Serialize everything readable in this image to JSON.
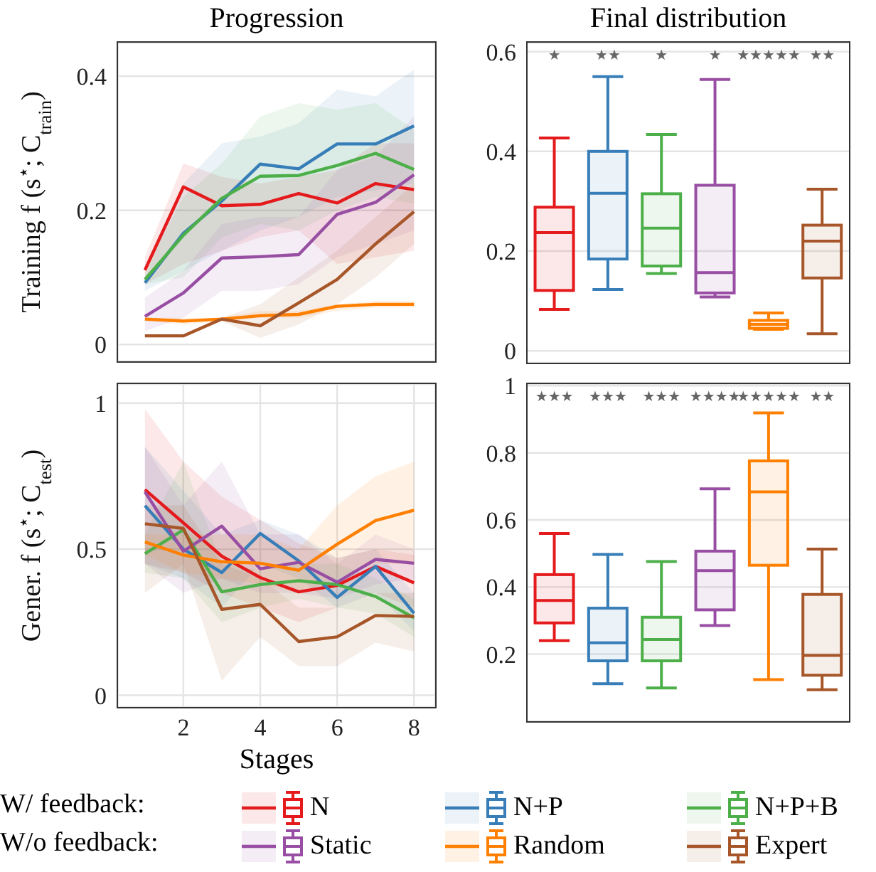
{
  "chart_data": [
    {
      "type": "line",
      "title": "Progression",
      "ylabel": "Training f (s$^{⋆}$; C$_{train}$)",
      "x": [
        1,
        2,
        3,
        4,
        5,
        6,
        7,
        8
      ],
      "xlim": [
        0.3,
        8.55
      ],
      "xticks": [
        2,
        4,
        6,
        8
      ],
      "ylim": [
        -0.025,
        0.45
      ],
      "yticks": [
        0,
        0.2,
        0.4
      ],
      "grid": true,
      "tick_labels": "y",
      "legend": "bottom",
      "annotations": [
        "W/ feedback:",
        "W/o feedback:"
      ],
      "series": [
        {
          "name": "N",
          "color": "#e41a1c",
          "values": [
            0.111,
            0.235,
            0.207,
            0.209,
            0.225,
            0.211,
            0.24,
            0.231
          ],
          "lower": [
            0.09,
            0.12,
            0.14,
            0.16,
            0.17,
            0.12,
            0.13,
            0.14
          ],
          "upper": [
            0.13,
            0.27,
            0.25,
            0.24,
            0.25,
            0.26,
            0.3,
            0.3
          ]
        },
        {
          "name": "N+P",
          "color": "#377eb8",
          "values": [
            0.092,
            0.166,
            0.214,
            0.269,
            0.262,
            0.299,
            0.299,
            0.326
          ],
          "lower": [
            0.08,
            0.11,
            0.14,
            0.17,
            0.19,
            0.22,
            0.23,
            0.24
          ],
          "upper": [
            0.1,
            0.24,
            0.3,
            0.31,
            0.33,
            0.38,
            0.37,
            0.41
          ]
        },
        {
          "name": "N+P+B",
          "color": "#4daf4a",
          "values": [
            0.097,
            0.163,
            0.218,
            0.251,
            0.252,
            0.267,
            0.285,
            0.261
          ],
          "lower": [
            0.09,
            0.1,
            0.16,
            0.18,
            0.17,
            0.2,
            0.22,
            0.21
          ],
          "upper": [
            0.11,
            0.22,
            0.27,
            0.34,
            0.36,
            0.35,
            0.36,
            0.32
          ]
        },
        {
          "name": "Static",
          "color": "#984ea3",
          "values": [
            0.042,
            0.077,
            0.129,
            0.131,
            0.134,
            0.194,
            0.212,
            0.253
          ],
          "lower": [
            0.02,
            0.04,
            0.08,
            0.08,
            0.09,
            0.13,
            0.15,
            0.17
          ],
          "upper": [
            0.07,
            0.11,
            0.18,
            0.19,
            0.19,
            0.26,
            0.28,
            0.34
          ]
        },
        {
          "name": "Random",
          "color": "#ff7f00",
          "values": [
            0.038,
            0.035,
            0.038,
            0.043,
            0.045,
            0.057,
            0.06,
            0.06
          ],
          "lower": [
            0.035,
            0.03,
            0.035,
            0.04,
            0.04,
            0.05,
            0.055,
            0.055
          ],
          "upper": [
            0.04,
            0.04,
            0.04,
            0.05,
            0.05,
            0.06,
            0.065,
            0.065
          ]
        },
        {
          "name": "Expert",
          "color": "#a65628",
          "values": [
            0.013,
            0.013,
            0.038,
            0.028,
            0.062,
            0.097,
            0.15,
            0.198
          ],
          "lower": [
            0.01,
            0.01,
            0.035,
            0.01,
            0.03,
            0.06,
            0.1,
            0.15
          ],
          "upper": [
            0.015,
            0.015,
            0.04,
            0.06,
            0.1,
            0.14,
            0.19,
            0.24
          ]
        }
      ]
    },
    {
      "type": "box",
      "title": "Final distribution",
      "categories": [
        null,
        null,
        null,
        null,
        null,
        null
      ],
      "colors": [
        "#e41a1c",
        "#377eb8",
        "#4daf4a",
        "#984ea3",
        "#ff7f00",
        "#a65628"
      ],
      "ylim": [
        -0.024,
        0.618
      ],
      "yticks": [
        0,
        0.2,
        0.4,
        0.6
      ],
      "grid": "y",
      "annotations": [
        "★",
        "★★",
        "★",
        "★",
        "★★★★★",
        "★★"
      ],
      "boxes": [
        {
          "low": 0.083,
          "q1": 0.121,
          "median": 0.237,
          "q3": 0.288,
          "high": 0.427
        },
        {
          "low": 0.123,
          "q1": 0.184,
          "median": 0.316,
          "q3": 0.4,
          "high": 0.55
        },
        {
          "low": 0.155,
          "q1": 0.17,
          "median": 0.246,
          "q3": 0.315,
          "high": 0.434
        },
        {
          "low": 0.108,
          "q1": 0.116,
          "median": 0.157,
          "q3": 0.332,
          "high": 0.544
        },
        {
          "low": 0.043,
          "q1": 0.045,
          "median": 0.053,
          "q3": 0.061,
          "high": 0.076
        },
        {
          "low": 0.034,
          "q1": 0.146,
          "median": 0.22,
          "q3": 0.252,
          "high": 0.324
        }
      ]
    },
    {
      "type": "line",
      "xlabel": "Stages",
      "ylabel": "Gener. f (s$^{⋆}$; C$_{test}$)",
      "x": [
        1,
        2,
        3,
        4,
        5,
        6,
        7,
        8
      ],
      "xlim": [
        0.3,
        8.55
      ],
      "xticks": [
        2,
        4,
        6,
        8
      ],
      "ylim": [
        -0.04,
        1.065
      ],
      "yticks": [
        0,
        0.5,
        1
      ],
      "grid": true,
      "series": [
        {
          "color": "#e41a1c",
          "values": [
            0.704,
            0.59,
            0.476,
            0.403,
            0.354,
            0.376,
            0.441,
            0.385
          ],
          "lower": [
            0.45,
            0.42,
            0.35,
            0.3,
            0.25,
            0.3,
            0.35,
            0.3
          ],
          "upper": [
            0.98,
            0.8,
            0.68,
            0.6,
            0.52,
            0.47,
            0.5,
            0.48
          ]
        },
        {
          "color": "#377eb8",
          "values": [
            0.649,
            0.5,
            0.42,
            0.554,
            0.46,
            0.335,
            0.441,
            0.281
          ],
          "lower": [
            0.45,
            0.4,
            0.3,
            0.45,
            0.4,
            0.3,
            0.35,
            0.22
          ],
          "upper": [
            0.85,
            0.7,
            0.55,
            0.6,
            0.55,
            0.47,
            0.5,
            0.35
          ]
        },
        {
          "color": "#4daf4a",
          "values": [
            0.485,
            0.566,
            0.354,
            0.379,
            0.392,
            0.379,
            0.338,
            0.265
          ],
          "lower": [
            0.42,
            0.4,
            0.25,
            0.3,
            0.33,
            0.3,
            0.28,
            0.2
          ],
          "upper": [
            0.55,
            0.8,
            0.45,
            0.43,
            0.45,
            0.45,
            0.4,
            0.33
          ]
        },
        {
          "color": "#984ea3",
          "values": [
            0.696,
            0.493,
            0.579,
            0.433,
            0.455,
            0.387,
            0.465,
            0.452
          ],
          "lower": [
            0.45,
            0.35,
            0.4,
            0.35,
            0.35,
            0.33,
            0.38,
            0.4
          ],
          "upper": [
            0.85,
            0.65,
            0.8,
            0.55,
            0.55,
            0.45,
            0.55,
            0.5
          ]
        },
        {
          "color": "#ff7f00",
          "values": [
            0.525,
            0.48,
            0.457,
            0.452,
            0.428,
            0.517,
            0.598,
            0.633
          ],
          "lower": [
            0.48,
            0.42,
            0.4,
            0.38,
            0.35,
            0.4,
            0.45,
            0.45
          ],
          "upper": [
            0.55,
            0.55,
            0.55,
            0.55,
            0.5,
            0.65,
            0.75,
            0.8
          ]
        },
        {
          "color": "#a65628",
          "values": [
            0.587,
            0.571,
            0.294,
            0.311,
            0.184,
            0.2,
            0.273,
            0.27
          ],
          "lower": [
            0.35,
            0.45,
            0.05,
            0.2,
            0.1,
            0.1,
            0.18,
            0.15
          ],
          "upper": [
            0.65,
            0.65,
            0.45,
            0.4,
            0.3,
            0.3,
            0.35,
            0.35
          ]
        }
      ]
    },
    {
      "type": "box",
      "categories": [
        null,
        null,
        null,
        null,
        null,
        null
      ],
      "colors": [
        "#e41a1c",
        "#377eb8",
        "#4daf4a",
        "#984ea3",
        "#ff7f00",
        "#a65628"
      ],
      "ylim": [
        0,
        1.005
      ],
      "yticks": [
        0.2,
        0.4,
        0.6,
        0.8,
        1
      ],
      "grid": "y",
      "annotations": [
        "★★★",
        "★★★",
        "★★★",
        "★★★★",
        "★★★★★",
        "★★"
      ],
      "boxes": [
        {
          "low": 0.24,
          "q1": 0.293,
          "median": 0.36,
          "q3": 0.437,
          "high": 0.56
        },
        {
          "low": 0.112,
          "q1": 0.18,
          "median": 0.234,
          "q3": 0.337,
          "high": 0.497
        },
        {
          "low": 0.099,
          "q1": 0.18,
          "median": 0.244,
          "q3": 0.31,
          "high": 0.476
        },
        {
          "low": 0.285,
          "q1": 0.332,
          "median": 0.449,
          "q3": 0.507,
          "high": 0.693
        },
        {
          "low": 0.124,
          "q1": 0.465,
          "median": 0.684,
          "q3": 0.776,
          "high": 0.919
        },
        {
          "low": 0.094,
          "q1": 0.137,
          "median": 0.196,
          "q3": 0.378,
          "high": 0.513
        }
      ]
    }
  ]
}
